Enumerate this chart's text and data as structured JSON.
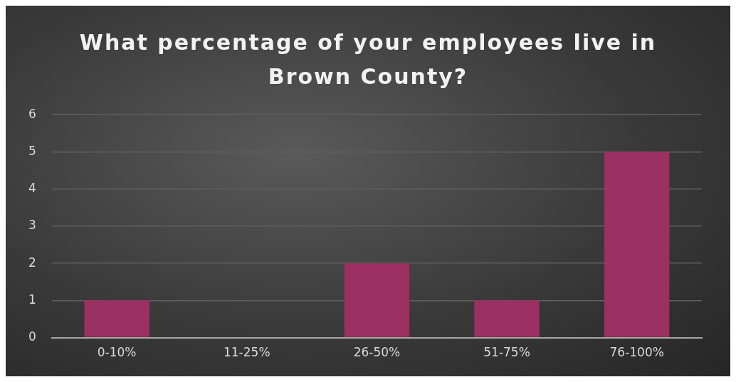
{
  "chart_data": {
    "type": "bar",
    "title": "What percentage of your employees live in Brown County?",
    "categories": [
      "0-10%",
      "11-25%",
      "26-50%",
      "51-75%",
      "76-100%"
    ],
    "values": [
      1,
      0,
      2,
      1,
      5
    ],
    "color": "#9b3162",
    "ylim": [
      0,
      6
    ],
    "yticks": [
      0,
      1,
      2,
      3,
      4,
      5,
      6
    ],
    "grid": "y",
    "legend": false
  }
}
